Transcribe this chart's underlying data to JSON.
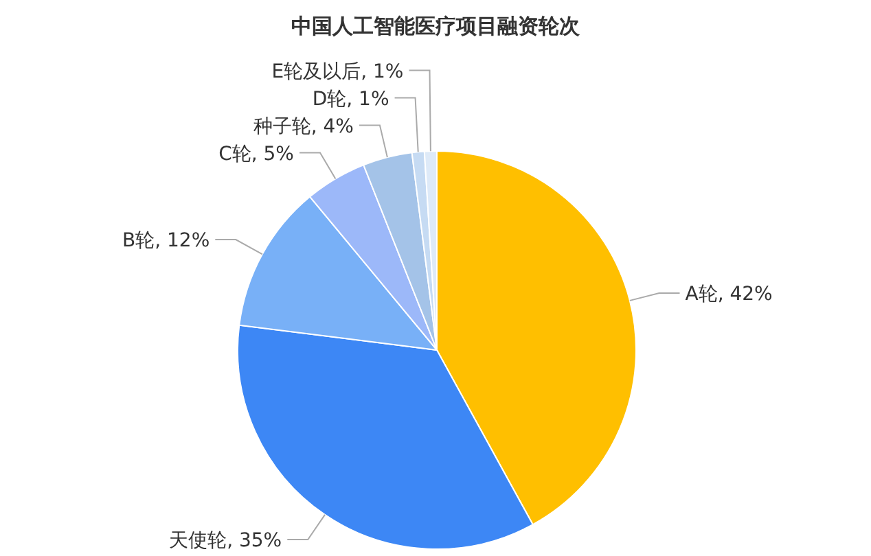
{
  "chart_data": {
    "type": "pie",
    "title": "中国人工智能医疗项目融资轮次",
    "categories": [
      "A轮",
      "天使轮",
      "B轮",
      "C轮",
      "种子轮",
      "D轮",
      "E轮及以后"
    ],
    "values": [
      42,
      35,
      12,
      5,
      4,
      1,
      1
    ],
    "value_labels": [
      ", 42%",
      ", 35%",
      ", 12%",
      ", 5%",
      ", 4%",
      ", 1%",
      ", 1%"
    ],
    "colors": [
      "#ffbf00",
      "#3d87f5",
      "#78b0f7",
      "#9cb8f9",
      "#a4c3e8",
      "#c6dbf3",
      "#deeaf8"
    ],
    "legend": false
  }
}
